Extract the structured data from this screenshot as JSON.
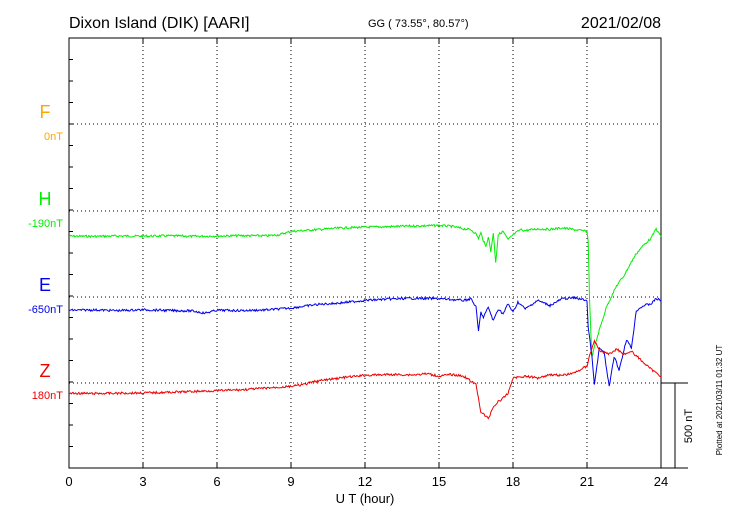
{
  "header": {
    "station": "Dixon Island (DIK)  [AARI]",
    "coords": "GG ( 73.55°,  80.57°)",
    "date": "2021/02/08"
  },
  "footer": {
    "plotted": "Plotted at 2021/03/11 01:32 UT"
  },
  "chart_data": {
    "type": "line",
    "xlabel": "U T (hour)",
    "xlim": [
      0,
      24
    ],
    "xticks": [
      "0",
      "3",
      "6",
      "9",
      "12",
      "15",
      "18",
      "21",
      "24"
    ],
    "scale_bar": "500 nT",
    "series": [
      {
        "name": "F",
        "baseline_label": "0nT",
        "color": "#ffa500",
        "x": [],
        "y": []
      },
      {
        "name": "H",
        "baseline_label": "-190nT",
        "color": "#00ee00",
        "x": [
          0,
          1,
          2,
          3,
          4,
          5,
          6,
          7,
          8,
          8.5,
          9,
          9.5,
          10,
          11,
          12,
          13,
          14,
          14.5,
          15,
          15.5,
          16,
          16.3,
          16.5,
          16.6,
          16.7,
          16.8,
          16.9,
          17,
          17.1,
          17.2,
          17.3,
          17.4,
          17.6,
          17.8,
          18,
          18.3,
          18.5,
          19,
          19.5,
          20,
          20.5,
          21,
          21.05,
          21.1,
          21.2,
          21.3,
          21.5,
          21.8,
          22,
          22.2,
          22.5,
          22.8,
          23,
          23.3,
          23.6,
          23.8,
          24
        ],
        "y": [
          -148,
          -149,
          -147,
          -148,
          -146,
          -149,
          -147,
          -145,
          -146,
          -140,
          -120,
          -115,
          -110,
          -100,
          -95,
          -92,
          -88,
          -87,
          -85,
          -90,
          -105,
          -110,
          -135,
          -160,
          -130,
          -175,
          -210,
          -150,
          -240,
          -130,
          -300,
          -140,
          -120,
          -170,
          -140,
          -110,
          -115,
          -105,
          -108,
          -100,
          -110,
          -120,
          -180,
          -520,
          -860,
          -800,
          -700,
          -560,
          -500,
          -440,
          -380,
          -300,
          -250,
          -200,
          -160,
          -105,
          -150
        ]
      },
      {
        "name": "E",
        "baseline_label": "-650nT",
        "color": "#0000ee",
        "x": [
          0,
          1,
          2,
          3,
          4,
          5,
          5.5,
          6,
          7,
          8,
          9,
          10,
          11,
          12,
          13,
          14,
          15,
          15.5,
          16,
          16.3,
          16.5,
          16.6,
          16.7,
          16.8,
          17,
          17.2,
          17.4,
          17.6,
          17.8,
          18,
          18.2,
          18.5,
          19,
          19.5,
          20,
          20.5,
          21,
          21.05,
          21.2,
          21.3,
          21.5,
          21.7,
          21.9,
          22.1,
          22.3,
          22.6,
          22.8,
          23,
          23.3,
          23.6,
          23.8,
          24
        ],
        "y": [
          -78,
          -76,
          -80,
          -75,
          -79,
          -82,
          -95,
          -78,
          -80,
          -76,
          -65,
          -45,
          -35,
          -20,
          -12,
          -8,
          -10,
          -15,
          -20,
          -10,
          -60,
          -200,
          -90,
          -120,
          -60,
          -140,
          -70,
          -100,
          -40,
          -90,
          -30,
          -70,
          -20,
          -50,
          -10,
          -5,
          -20,
          -180,
          -350,
          -520,
          -300,
          -330,
          -530,
          -350,
          -430,
          -250,
          -300,
          -80,
          -50,
          -40,
          -10,
          -20
        ]
      },
      {
        "name": "Z",
        "baseline_label": "180nT",
        "color": "#ee0000",
        "x": [
          0,
          1,
          2,
          3,
          4,
          5,
          6,
          7,
          8,
          9,
          9.5,
          10,
          11,
          12,
          13,
          14,
          14.5,
          15,
          15.5,
          16,
          16.3,
          16.5,
          16.7,
          17,
          17.2,
          17.4,
          17.6,
          17.8,
          18,
          18.5,
          19,
          19.5,
          20,
          20.5,
          21,
          21.1,
          21.3,
          21.5,
          21.7,
          21.9,
          22.2,
          22.5,
          22.8,
          23,
          23.3,
          23.6,
          24
        ],
        "y": [
          -60,
          -62,
          -60,
          -58,
          -55,
          -50,
          -45,
          -40,
          -30,
          -20,
          -10,
          10,
          30,
          45,
          50,
          48,
          55,
          40,
          50,
          40,
          10,
          -10,
          -170,
          -210,
          -140,
          -110,
          -90,
          -60,
          30,
          40,
          30,
          50,
          45,
          60,
          100,
          160,
          250,
          190,
          180,
          170,
          200,
          170,
          185,
          160,
          120,
          80,
          40
        ]
      }
    ]
  }
}
